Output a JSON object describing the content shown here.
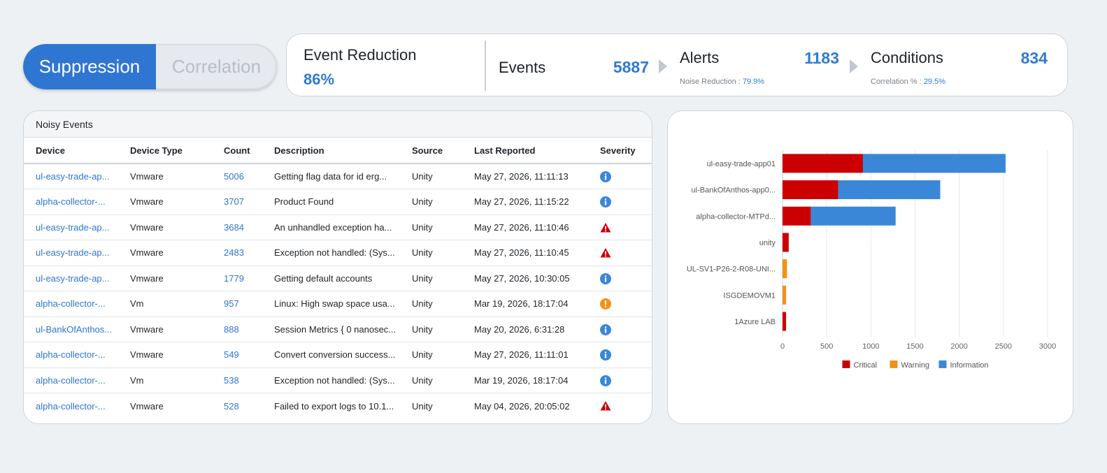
{
  "toggle": {
    "active_label": "Suppression",
    "inactive_label": "Correlation"
  },
  "stats": {
    "event_reduction_title": "Event Reduction",
    "event_reduction_value": "86%",
    "events_label": "Events",
    "events_value": "5887",
    "alerts_label": "Alerts",
    "alerts_value": "1183",
    "noise_reduction_label": "Noise Reduction : ",
    "noise_reduction_value": "79.9%",
    "conditions_label": "Conditions",
    "conditions_value": "834",
    "correlation_label": "Correlation % : ",
    "correlation_value": "29.5%"
  },
  "table": {
    "title": "Noisy Events",
    "headers": [
      "Device",
      "Device Type",
      "Count",
      "Description",
      "Source",
      "Last Reported",
      "Severity"
    ],
    "rows": [
      {
        "device": "ul-easy-trade-ap...",
        "type": "Vmware",
        "count": "5006",
        "description": "Getting flag data for id erg...",
        "source": "Unity",
        "reported": "May 27, 2026, 11:11:13",
        "severity": "info"
      },
      {
        "device": "alpha-collector-...",
        "type": "Vmware",
        "count": "3707",
        "description": "Product Found",
        "source": "Unity",
        "reported": "May 27, 2026, 11:15:22",
        "severity": "info"
      },
      {
        "device": "ul-easy-trade-ap...",
        "type": "Vmware",
        "count": "3684",
        "description": "An unhandled exception ha...",
        "source": "Unity",
        "reported": "May 27, 2026, 11:10:46",
        "severity": "critical"
      },
      {
        "device": "ul-easy-trade-ap...",
        "type": "Vmware",
        "count": "2483",
        "description": "Exception not handled: (Sys...",
        "source": "Unity",
        "reported": "May 27, 2026, 11:10:45",
        "severity": "critical"
      },
      {
        "device": "ul-easy-trade-ap...",
        "type": "Vmware",
        "count": "1779",
        "description": "Getting default accounts",
        "source": "Unity",
        "reported": "May 27, 2026, 10:30:05",
        "severity": "info"
      },
      {
        "device": "alpha-collector-...",
        "type": "Vm",
        "count": "957",
        "description": "Linux: High swap space usa...",
        "source": "Unity",
        "reported": "Mar 19, 2026, 18:17:04",
        "severity": "warning"
      },
      {
        "device": "ul-BankOfAnthos...",
        "type": "Vmware",
        "count": "888",
        "description": "Session Metrics { 0 nanosec...",
        "source": "Unity",
        "reported": "May 20, 2026, 6:31:28",
        "severity": "info"
      },
      {
        "device": "alpha-collector-...",
        "type": "Vmware",
        "count": "549",
        "description": "Convert conversion success...",
        "source": "Unity",
        "reported": "May 27, 2026, 11:11:01",
        "severity": "info"
      },
      {
        "device": "alpha-collector-...",
        "type": "Vm",
        "count": "538",
        "description": "Exception not handled: (Sys...",
        "source": "Unity",
        "reported": "Mar 19, 2026, 18:17:04",
        "severity": "info"
      },
      {
        "device": "alpha-collector-...",
        "type": "Vmware",
        "count": "528",
        "description": "Failed to export logs to 10.1...",
        "source": "Unity",
        "reported": "May 04, 2026, 20:05:02",
        "severity": "critical"
      }
    ]
  },
  "colors": {
    "accent": "#2f76d2",
    "critical": "#cc0000",
    "warning": "#f39019",
    "information": "#3a87d8"
  },
  "chart_data": {
    "type": "bar",
    "orientation": "horizontal",
    "stacked": true,
    "categories": [
      "ul-easy-trade-app01",
      "ul-BankOfAnthos-app0...",
      "alpha-collector-MTPd...",
      "unity",
      "UL-SV1-P26-2-R08-UNI...",
      "ISGDEMOVM1",
      "1Azure LAB"
    ],
    "series": [
      {
        "name": "Critical",
        "color": "#cc0000",
        "values": [
          910,
          630,
          320,
          70,
          0,
          0,
          40
        ]
      },
      {
        "name": "Warning",
        "color": "#f39019",
        "values": [
          0,
          0,
          0,
          0,
          50,
          40,
          0
        ]
      },
      {
        "name": "Information",
        "color": "#3a87d8",
        "values": [
          1615,
          1155,
          960,
          0,
          0,
          0,
          0
        ]
      }
    ],
    "xlim": [
      0,
      3000
    ],
    "xticks": [
      "0",
      "500",
      "1000",
      "1500",
      "2000",
      "2500",
      "3000"
    ],
    "legend": "bottom"
  }
}
